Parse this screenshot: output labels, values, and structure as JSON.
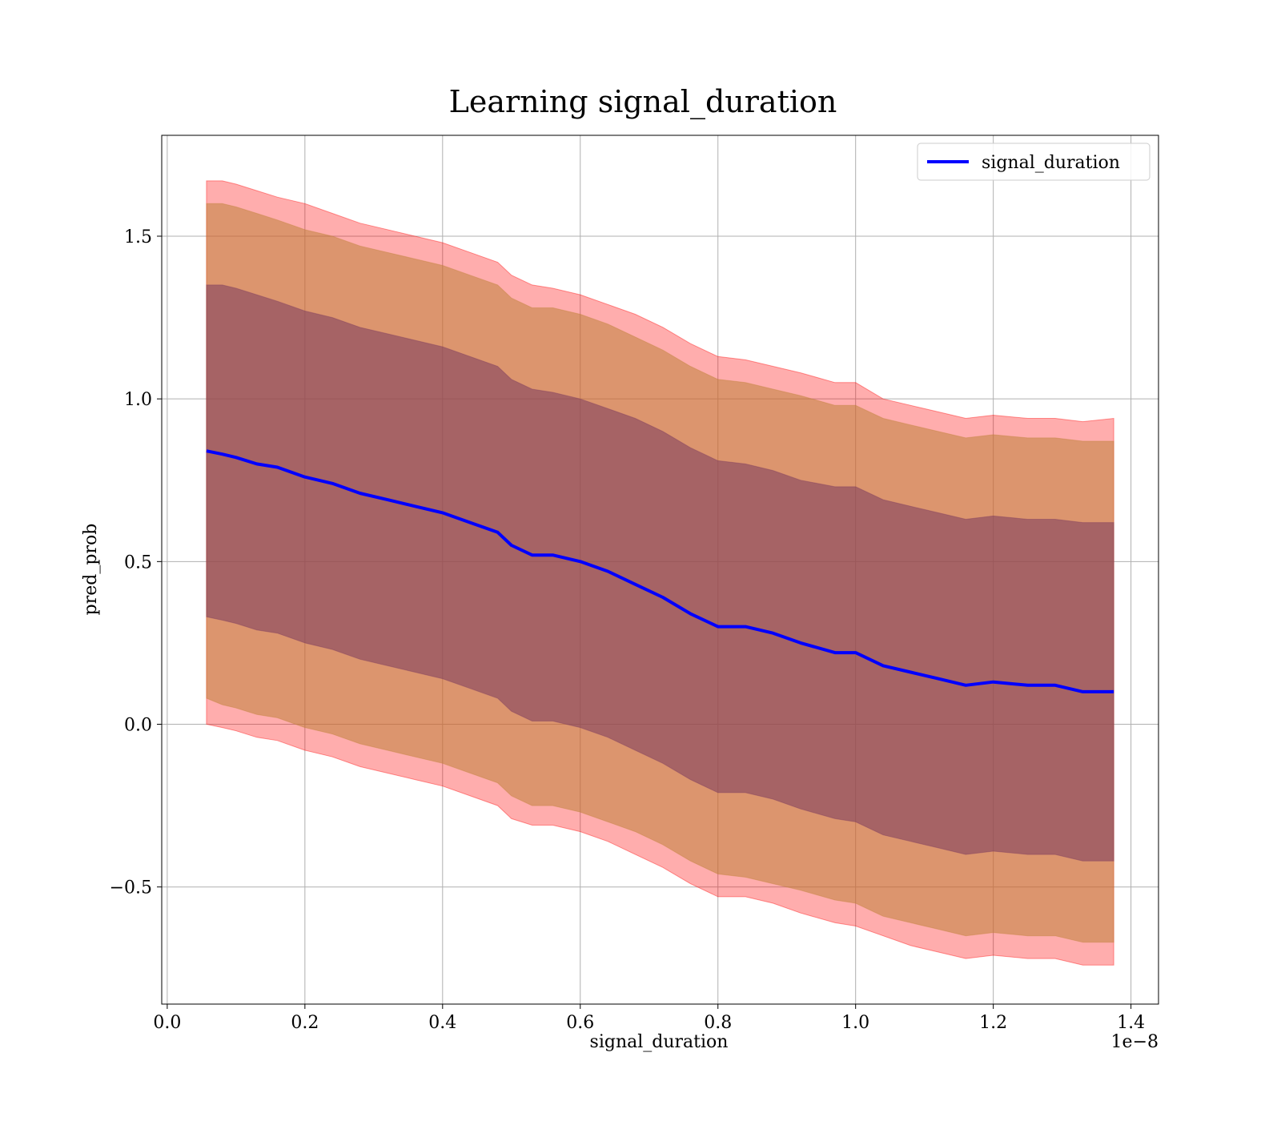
{
  "chart_data": {
    "type": "line",
    "title": "Learning signal_duration",
    "xlabel": "signal_duration",
    "ylabel": "pred_prob",
    "x_offset_label": "1e−8",
    "xlim": [
      -0.008,
      1.44
    ],
    "ylim": [
      -0.86,
      1.81
    ],
    "x_scale_note": "x values in units of 1e-8",
    "xticks": [
      0.0,
      0.2,
      0.4,
      0.6,
      0.8,
      1.0,
      1.2,
      1.4
    ],
    "xtick_labels": [
      "0.0",
      "0.2",
      "0.4",
      "0.6",
      "0.8",
      "1.0",
      "1.2",
      "1.4"
    ],
    "yticks": [
      -0.5,
      0.0,
      0.5,
      1.0,
      1.5
    ],
    "ytick_labels": [
      "−0.5",
      "0.0",
      "0.5",
      "1.0",
      "1.5"
    ],
    "grid": true,
    "legend_position": "top-right",
    "colors": {
      "line": "#0000ff",
      "band_outer": "#ff0000",
      "band_middle": "#c0813a",
      "band_inner": "#7a3a5e",
      "grid": "#b0b0b0"
    },
    "x": [
      0.057,
      0.08,
      0.1,
      0.13,
      0.16,
      0.2,
      0.24,
      0.28,
      0.32,
      0.36,
      0.4,
      0.44,
      0.48,
      0.5,
      0.53,
      0.56,
      0.6,
      0.64,
      0.68,
      0.72,
      0.76,
      0.8,
      0.84,
      0.88,
      0.92,
      0.97,
      1.0,
      1.04,
      1.08,
      1.12,
      1.16,
      1.2,
      1.25,
      1.29,
      1.33,
      1.375
    ],
    "series": [
      {
        "name": "signal_duration",
        "values": [
          0.84,
          0.83,
          0.82,
          0.8,
          0.79,
          0.76,
          0.74,
          0.71,
          0.69,
          0.67,
          0.65,
          0.62,
          0.59,
          0.55,
          0.52,
          0.52,
          0.5,
          0.47,
          0.43,
          0.39,
          0.34,
          0.3,
          0.3,
          0.28,
          0.25,
          0.22,
          0.22,
          0.18,
          0.16,
          0.14,
          0.12,
          0.13,
          0.12,
          0.12,
          0.1,
          0.1
        ]
      }
    ],
    "bands": [
      {
        "upper": [
          1.67,
          1.67,
          1.66,
          1.64,
          1.62,
          1.6,
          1.57,
          1.54,
          1.52,
          1.5,
          1.48,
          1.45,
          1.42,
          1.38,
          1.35,
          1.34,
          1.32,
          1.29,
          1.26,
          1.22,
          1.17,
          1.13,
          1.12,
          1.1,
          1.08,
          1.05,
          1.05,
          1.0,
          0.98,
          0.96,
          0.94,
          0.95,
          0.94,
          0.94,
          0.93,
          0.94
        ],
        "lower": [
          0.0,
          -0.01,
          -0.02,
          -0.04,
          -0.05,
          -0.08,
          -0.1,
          -0.13,
          -0.15,
          -0.17,
          -0.19,
          -0.22,
          -0.25,
          -0.29,
          -0.31,
          -0.31,
          -0.33,
          -0.36,
          -0.4,
          -0.44,
          -0.49,
          -0.53,
          -0.53,
          -0.55,
          -0.58,
          -0.61,
          -0.62,
          -0.65,
          -0.68,
          -0.7,
          -0.72,
          -0.71,
          -0.72,
          -0.72,
          -0.74,
          -0.74
        ]
      },
      {
        "upper": [
          1.6,
          1.6,
          1.59,
          1.57,
          1.55,
          1.52,
          1.5,
          1.47,
          1.45,
          1.43,
          1.41,
          1.38,
          1.35,
          1.31,
          1.28,
          1.28,
          1.26,
          1.23,
          1.19,
          1.15,
          1.1,
          1.06,
          1.05,
          1.03,
          1.01,
          0.98,
          0.98,
          0.94,
          0.92,
          0.9,
          0.88,
          0.89,
          0.88,
          0.88,
          0.87,
          0.87
        ],
        "lower": [
          0.08,
          0.06,
          0.05,
          0.03,
          0.02,
          -0.01,
          -0.03,
          -0.06,
          -0.08,
          -0.1,
          -0.12,
          -0.15,
          -0.18,
          -0.22,
          -0.25,
          -0.25,
          -0.27,
          -0.3,
          -0.33,
          -0.37,
          -0.42,
          -0.46,
          -0.47,
          -0.49,
          -0.51,
          -0.54,
          -0.55,
          -0.59,
          -0.61,
          -0.63,
          -0.65,
          -0.64,
          -0.65,
          -0.65,
          -0.67,
          -0.67
        ]
      },
      {
        "upper": [
          1.35,
          1.35,
          1.34,
          1.32,
          1.3,
          1.27,
          1.25,
          1.22,
          1.2,
          1.18,
          1.16,
          1.13,
          1.1,
          1.06,
          1.03,
          1.02,
          1.0,
          0.97,
          0.94,
          0.9,
          0.85,
          0.81,
          0.8,
          0.78,
          0.75,
          0.73,
          0.73,
          0.69,
          0.67,
          0.65,
          0.63,
          0.64,
          0.63,
          0.63,
          0.62,
          0.62
        ],
        "lower": [
          0.33,
          0.32,
          0.31,
          0.29,
          0.28,
          0.25,
          0.23,
          0.2,
          0.18,
          0.16,
          0.14,
          0.11,
          0.08,
          0.04,
          0.01,
          0.01,
          -0.01,
          -0.04,
          -0.08,
          -0.12,
          -0.17,
          -0.21,
          -0.21,
          -0.23,
          -0.26,
          -0.29,
          -0.3,
          -0.34,
          -0.36,
          -0.38,
          -0.4,
          -0.39,
          -0.4,
          -0.4,
          -0.42,
          -0.42
        ]
      }
    ]
  }
}
